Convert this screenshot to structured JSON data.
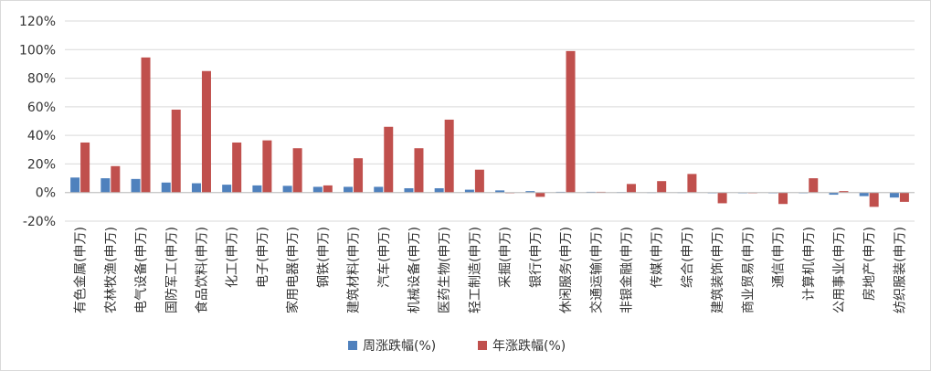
{
  "chart_data": {
    "type": "bar",
    "title": "",
    "xlabel": "",
    "ylabel": "",
    "ylim": [
      -20,
      120
    ],
    "yticks": [
      -20,
      0,
      20,
      40,
      60,
      80,
      100,
      120
    ],
    "ytick_suffix": "%",
    "grid": true,
    "legend_position": "bottom",
    "categories": [
      "有色金属(申万)",
      "农林牧渔(申万)",
      "电气设备(申万)",
      "国防军工(申万)",
      "食品饮料(申万)",
      "化工(申万)",
      "电子(申万)",
      "家用电器(申万)",
      "钢铁(申万)",
      "建筑材料(申万)",
      "汽车(申万)",
      "机械设备(申万)",
      "医药生物(申万)",
      "轻工制造(申万)",
      "采掘(申万)",
      "银行(申万)",
      "休闲服务(申万)",
      "交通运输(申万)",
      "非银金融(申万)",
      "传媒(申万)",
      "综合(申万)",
      "建筑装饰(申万)",
      "商业贸易(申万)",
      "通信(申万)",
      "计算机(申万)",
      "公用事业(申万)",
      "房地产(申万)",
      "纺织服装(申万)"
    ],
    "series": [
      {
        "name": "周涨跌幅(%)",
        "color": "#4f81bd",
        "values": [
          10.5,
          10,
          9.5,
          7,
          6.5,
          5.5,
          5,
          4.7,
          4,
          4,
          4,
          3,
          3,
          2,
          1.5,
          1,
          0.5,
          0.5,
          0.3,
          0.2,
          0.2,
          -0.5,
          -0.5,
          -0.5,
          -0.5,
          -1.5,
          -2.5,
          -3.5
        ]
      },
      {
        "name": "年涨跌幅(%)",
        "color": "#c0504d",
        "values": [
          35,
          18.5,
          94.5,
          58,
          85,
          35,
          36.5,
          31,
          5,
          24,
          46,
          31,
          51,
          16,
          -0.5,
          -3,
          99,
          0.5,
          6,
          8,
          13,
          -7.5,
          -0.5,
          -8,
          10,
          1,
          -10,
          -6.5
        ]
      }
    ]
  }
}
